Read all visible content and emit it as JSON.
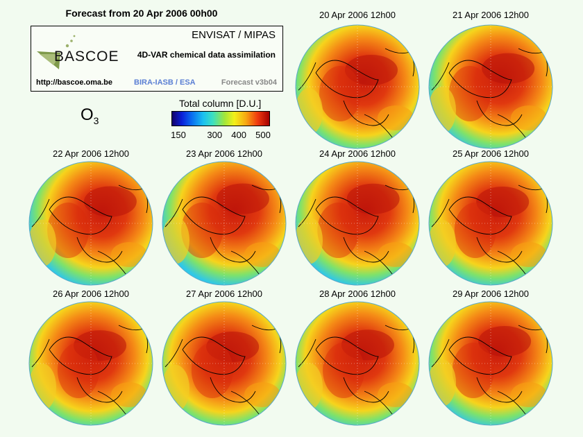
{
  "header": {
    "title": "Forecast from 20 Apr 2006 00h00"
  },
  "info_box": {
    "logo_text": "BASCOE",
    "instrument": "ENVISAT / MIPAS",
    "subtitle": "4D-VAR chemical data assimilation",
    "url": "http://bascoe.oma.be",
    "organizations": "BIRA-IASB / ESA",
    "version": "Forecast v3b04"
  },
  "species": {
    "symbol": "O",
    "subscript": "3"
  },
  "chart_data": {
    "type": "heatmap",
    "title": "Forecast from 20 Apr 2006 00h00",
    "variable": "O3 total column",
    "colorbar": {
      "label": "Total column [D.U.]",
      "range": [
        150,
        500
      ],
      "ticks": [
        150,
        300,
        400,
        500
      ],
      "tick_labels": [
        "150",
        "300",
        "400",
        "500"
      ],
      "colors": [
        "#14006a",
        "#0a1fd8",
        "#0a6cf0",
        "#1ac0f0",
        "#3de0c0",
        "#a2e63a",
        "#f2f01a",
        "#f7a812",
        "#ef3a10",
        "#a40000"
      ]
    },
    "panels": [
      {
        "title": "20 Apr 2006 12h00"
      },
      {
        "title": "21 Apr 2006 12h00"
      },
      {
        "title": "22 Apr 2006 12h00"
      },
      {
        "title": "23 Apr 2006 12h00"
      },
      {
        "title": "24 Apr 2006 12h00"
      },
      {
        "title": "25 Apr 2006 12h00"
      },
      {
        "title": "26 Apr 2006 12h00"
      },
      {
        "title": "27 Apr 2006 12h00"
      },
      {
        "title": "28 Apr 2006 12h00"
      },
      {
        "title": "29 Apr 2006 12h00"
      }
    ]
  }
}
